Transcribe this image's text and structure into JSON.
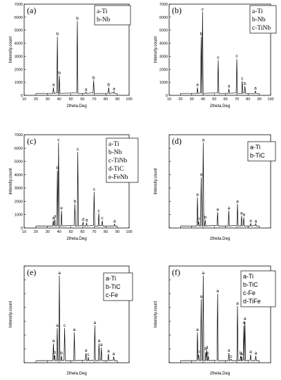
{
  "chart_data": [
    {
      "id": "a",
      "type": "line",
      "panel_label": "(a)",
      "legend": [
        "a-Ti",
        "b-Nb"
      ],
      "xlabel": "2theta.Deg",
      "ylabel": "Intensity.count",
      "xlim": [
        10,
        100
      ],
      "ylim": [
        0,
        7000
      ],
      "xticks": [
        10,
        20,
        30,
        40,
        50,
        60,
        70,
        80,
        90,
        100
      ],
      "yticks": [
        0,
        1000,
        2000,
        3000,
        4000,
        5000,
        6000,
        7000
      ],
      "baseline": 150,
      "peaks": [
        {
          "x": 35.1,
          "y": 600,
          "label": "a"
        },
        {
          "x": 38.5,
          "y": 4500,
          "label": "b"
        },
        {
          "x": 40.2,
          "y": 1500,
          "label": "b"
        },
        {
          "x": 55.6,
          "y": 5700,
          "label": "b"
        },
        {
          "x": 63.0,
          "y": 250,
          "label": "a"
        },
        {
          "x": 69.6,
          "y": 1150,
          "label": "b"
        },
        {
          "x": 82.5,
          "y": 600,
          "label": "b"
        },
        {
          "x": 87.0,
          "y": 280,
          "label": "a"
        }
      ]
    },
    {
      "id": "b",
      "type": "line",
      "panel_label": "(b)",
      "legend": [
        "a-Ti",
        "b-Nb",
        "c-TiNb"
      ],
      "xlabel": "2theta.Deg",
      "ylabel": "Intensity.count",
      "xlim": [
        10,
        100
      ],
      "ylim": [
        0,
        7000
      ],
      "xticks": [
        10,
        20,
        30,
        40,
        50,
        60,
        70,
        80,
        90,
        100
      ],
      "yticks": [
        0,
        1000,
        2000,
        3000,
        4000,
        5000,
        6000,
        7000
      ],
      "baseline": 150,
      "peaks": [
        {
          "x": 35.1,
          "y": 600,
          "label": "a"
        },
        {
          "x": 38.4,
          "y": 4500,
          "label": "b"
        },
        {
          "x": 39.6,
          "y": 6400,
          "label": "c"
        },
        {
          "x": 53.5,
          "y": 2700,
          "label": "c"
        },
        {
          "x": 63.0,
          "y": 500,
          "label": "a"
        },
        {
          "x": 70.0,
          "y": 2800,
          "label": "c"
        },
        {
          "x": 74.8,
          "y": 1100,
          "label": "c"
        },
        {
          "x": 77.2,
          "y": 700,
          "label": "b"
        },
        {
          "x": 86.5,
          "y": 350,
          "label": "a"
        }
      ]
    },
    {
      "id": "c",
      "type": "line",
      "panel_label": "(c)",
      "legend": [
        "a-Ti",
        "b-Nb",
        "c-TiNb",
        "d-TiC",
        "e-FeNb"
      ],
      "xlabel": "2theta.Deg",
      "ylabel": "Intensity.count",
      "xlim": [
        10,
        100
      ],
      "ylim": [
        0,
        7000
      ],
      "xticks": [
        10,
        20,
        30,
        40,
        50,
        60,
        70,
        80,
        90,
        100
      ],
      "yticks": [
        0,
        1000,
        2000,
        3000,
        4000,
        5000,
        6000,
        7000
      ],
      "baseline": 150,
      "peaks": [
        {
          "x": 35.0,
          "y": 550,
          "label": "a"
        },
        {
          "x": 36.3,
          "y": 650,
          "label": "d"
        },
        {
          "x": 38.5,
          "y": 4300,
          "label": "b"
        },
        {
          "x": 39.5,
          "y": 6400,
          "label": "c"
        },
        {
          "x": 42.0,
          "y": 1300,
          "label": "e"
        },
        {
          "x": 53.5,
          "y": 1800,
          "label": "b"
        },
        {
          "x": 56.0,
          "y": 5700,
          "label": "c"
        },
        {
          "x": 60.5,
          "y": 450,
          "label": "d"
        },
        {
          "x": 63.5,
          "y": 400,
          "label": "a"
        },
        {
          "x": 70.0,
          "y": 2700,
          "label": "c"
        },
        {
          "x": 74.0,
          "y": 1100,
          "label": "c"
        },
        {
          "x": 77.0,
          "y": 550,
          "label": "c"
        },
        {
          "x": 87.5,
          "y": 300,
          "label": "a"
        }
      ]
    },
    {
      "id": "d",
      "type": "line",
      "panel_label": "(d)",
      "legend": [
        "a-Ti",
        "b-TiC"
      ],
      "xlabel": "2theta.Deg",
      "ylabel": "Intensity.count",
      "xlim": [
        10,
        100
      ],
      "ylim": [
        0,
        7000
      ],
      "baseline": 150,
      "peaks": [
        {
          "x": 35.1,
          "y": 2300,
          "label": "a"
        },
        {
          "x": 36.2,
          "y": 500,
          "label": "b"
        },
        {
          "x": 38.4,
          "y": 3800,
          "label": "a"
        },
        {
          "x": 40.2,
          "y": 6400,
          "label": "a"
        },
        {
          "x": 42.0,
          "y": 600,
          "label": "b"
        },
        {
          "x": 53.0,
          "y": 1200,
          "label": "a"
        },
        {
          "x": 62.9,
          "y": 1300,
          "label": "a"
        },
        {
          "x": 70.6,
          "y": 1800,
          "label": "a"
        },
        {
          "x": 74.2,
          "y": 900,
          "label": "a"
        },
        {
          "x": 76.2,
          "y": 800,
          "label": "a"
        },
        {
          "x": 82.3,
          "y": 350,
          "label": "a"
        },
        {
          "x": 86.8,
          "y": 320,
          "label": "a"
        }
      ]
    },
    {
      "id": "e",
      "type": "line",
      "panel_label": "(e)",
      "legend": [
        "a-Ti",
        "b-TiC",
        "c-Fe"
      ],
      "xlabel": "2theta.Deg",
      "ylabel": "Intensity.count",
      "xlim": [
        10,
        100
      ],
      "ylim": [
        0,
        7000
      ],
      "baseline": 150,
      "peaks": [
        {
          "x": 35.1,
          "y": 1400,
          "label": "a"
        },
        {
          "x": 36.2,
          "y": 550,
          "label": "b"
        },
        {
          "x": 38.4,
          "y": 2500,
          "label": "a"
        },
        {
          "x": 40.2,
          "y": 6300,
          "label": "a"
        },
        {
          "x": 42.0,
          "y": 500,
          "label": "b"
        },
        {
          "x": 44.7,
          "y": 2500,
          "label": "c"
        },
        {
          "x": 53.0,
          "y": 2200,
          "label": "a"
        },
        {
          "x": 63.0,
          "y": 700,
          "label": "a"
        },
        {
          "x": 65.0,
          "y": 400,
          "label": "c"
        },
        {
          "x": 70.6,
          "y": 2700,
          "label": "a"
        },
        {
          "x": 74.2,
          "y": 1400,
          "label": "a"
        },
        {
          "x": 76.2,
          "y": 1100,
          "label": "a"
        },
        {
          "x": 82.3,
          "y": 650,
          "label": "a"
        },
        {
          "x": 86.8,
          "y": 450,
          "label": "a"
        }
      ]
    },
    {
      "id": "f",
      "type": "line",
      "panel_label": "(f)",
      "legend": [
        "a-Ti",
        "b-TiC",
        "c-Fe",
        "d-TiFe"
      ],
      "xlabel": "2theta.Deg",
      "ylabel": "Intensity.count",
      "xlim": [
        10,
        100
      ],
      "ylim": [
        0,
        7000
      ],
      "baseline": 150,
      "peaks": [
        {
          "x": 35.1,
          "y": 2200,
          "label": "a"
        },
        {
          "x": 36.2,
          "y": 600,
          "label": "b"
        },
        {
          "x": 38.4,
          "y": 4600,
          "label": "a"
        },
        {
          "x": 40.2,
          "y": 6300,
          "label": "a"
        },
        {
          "x": 42.5,
          "y": 800,
          "label": "b"
        },
        {
          "x": 43.4,
          "y": 900,
          "label": "d"
        },
        {
          "x": 44.7,
          "y": 500,
          "label": "c"
        },
        {
          "x": 53.0,
          "y": 5000,
          "label": "a"
        },
        {
          "x": 63.0,
          "y": 700,
          "label": "a"
        },
        {
          "x": 65.0,
          "y": 250,
          "label": "c"
        },
        {
          "x": 70.6,
          "y": 4100,
          "label": "a"
        },
        {
          "x": 73.5,
          "y": 500,
          "label": "b"
        },
        {
          "x": 74.2,
          "y": 450,
          "label": "a"
        },
        {
          "x": 76.2,
          "y": 2700,
          "label": "a"
        },
        {
          "x": 77.2,
          "y": 3000,
          "label": "a"
        },
        {
          "x": 82.3,
          "y": 600,
          "label": "a"
        },
        {
          "x": 86.8,
          "y": 500,
          "label": "a"
        }
      ]
    }
  ]
}
